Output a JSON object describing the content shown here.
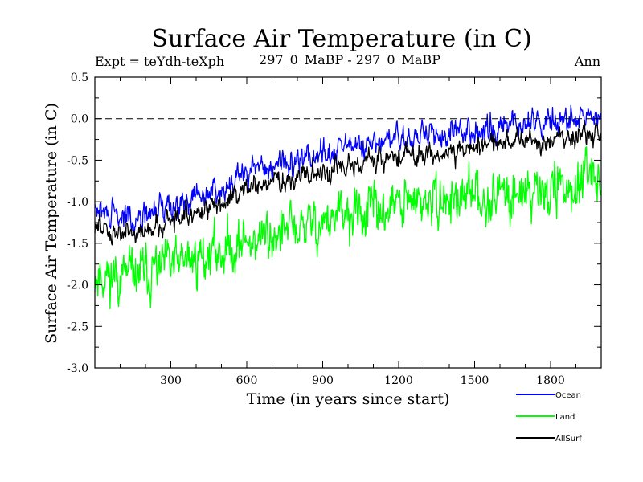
{
  "chart_data": {
    "type": "line",
    "title": "Surface Air Temperature (in C)",
    "subtitle_left": "Expt = teYdh-teXph",
    "subtitle_center": "297_0_MaBP - 297_0_MaBP",
    "subtitle_right": "Ann",
    "xlabel": "Time (in years since start)",
    "ylabel": "Surface Air Temperature (in C)",
    "xlim": [
      0,
      2000
    ],
    "ylim": [
      -3.0,
      0.5
    ],
    "xticks": [
      300,
      600,
      900,
      1200,
      1500,
      1800
    ],
    "xtick_labels": [
      "300",
      "600",
      "900",
      "1200",
      "1500",
      "1800"
    ],
    "yticks": [
      -3.0,
      -2.5,
      -2.0,
      -1.5,
      -1.0,
      -0.5,
      0.0,
      0.5
    ],
    "ytick_labels": [
      "-3.0",
      "-2.5",
      "-2.0",
      "-1.5",
      "-1.0",
      "-0.5",
      "0.0",
      "0.5"
    ],
    "reference_line": {
      "y": 0.0,
      "style": "dashed"
    },
    "legend_position": "bottom-right",
    "series": [
      {
        "name": "Ocean",
        "color": "#0000ff",
        "x": [
          0,
          100,
          200,
          300,
          400,
          500,
          600,
          700,
          800,
          900,
          1000,
          1100,
          1200,
          1300,
          1400,
          1500,
          1600,
          1700,
          1800,
          1900,
          2000
        ],
        "mean": [
          -1.1,
          -1.2,
          -1.18,
          -1.02,
          -0.95,
          -0.82,
          -0.65,
          -0.58,
          -0.5,
          -0.42,
          -0.35,
          -0.32,
          -0.25,
          -0.22,
          -0.18,
          -0.12,
          -0.08,
          -0.06,
          -0.03,
          -0.02,
          0.0
        ],
        "spread": 0.22,
        "range": [
          -1.65,
          0.35
        ]
      },
      {
        "name": "Land",
        "color": "#00ff00",
        "x": [
          0,
          100,
          200,
          300,
          400,
          500,
          600,
          700,
          800,
          900,
          1000,
          1100,
          1200,
          1300,
          1400,
          1500,
          1600,
          1700,
          1800,
          1900,
          2000
        ],
        "mean": [
          -1.85,
          -1.9,
          -1.85,
          -1.78,
          -1.68,
          -1.58,
          -1.48,
          -1.4,
          -1.32,
          -1.25,
          -1.18,
          -1.12,
          -1.05,
          -1.02,
          -0.98,
          -0.95,
          -0.9,
          -0.88,
          -0.85,
          -0.82,
          -0.78
        ],
        "spread": 0.42,
        "range": [
          -2.7,
          -0.15
        ]
      },
      {
        "name": "AllSurf",
        "color": "#000000",
        "x": [
          0,
          100,
          200,
          300,
          400,
          500,
          600,
          700,
          800,
          900,
          1000,
          1100,
          1200,
          1300,
          1400,
          1500,
          1600,
          1700,
          1800,
          1900,
          2000
        ],
        "mean": [
          -1.3,
          -1.38,
          -1.35,
          -1.22,
          -1.12,
          -1.0,
          -0.85,
          -0.78,
          -0.7,
          -0.62,
          -0.56,
          -0.52,
          -0.45,
          -0.42,
          -0.38,
          -0.33,
          -0.28,
          -0.26,
          -0.23,
          -0.22,
          -0.2
        ],
        "spread": 0.18,
        "range": [
          -1.75,
          0.05
        ]
      }
    ]
  }
}
